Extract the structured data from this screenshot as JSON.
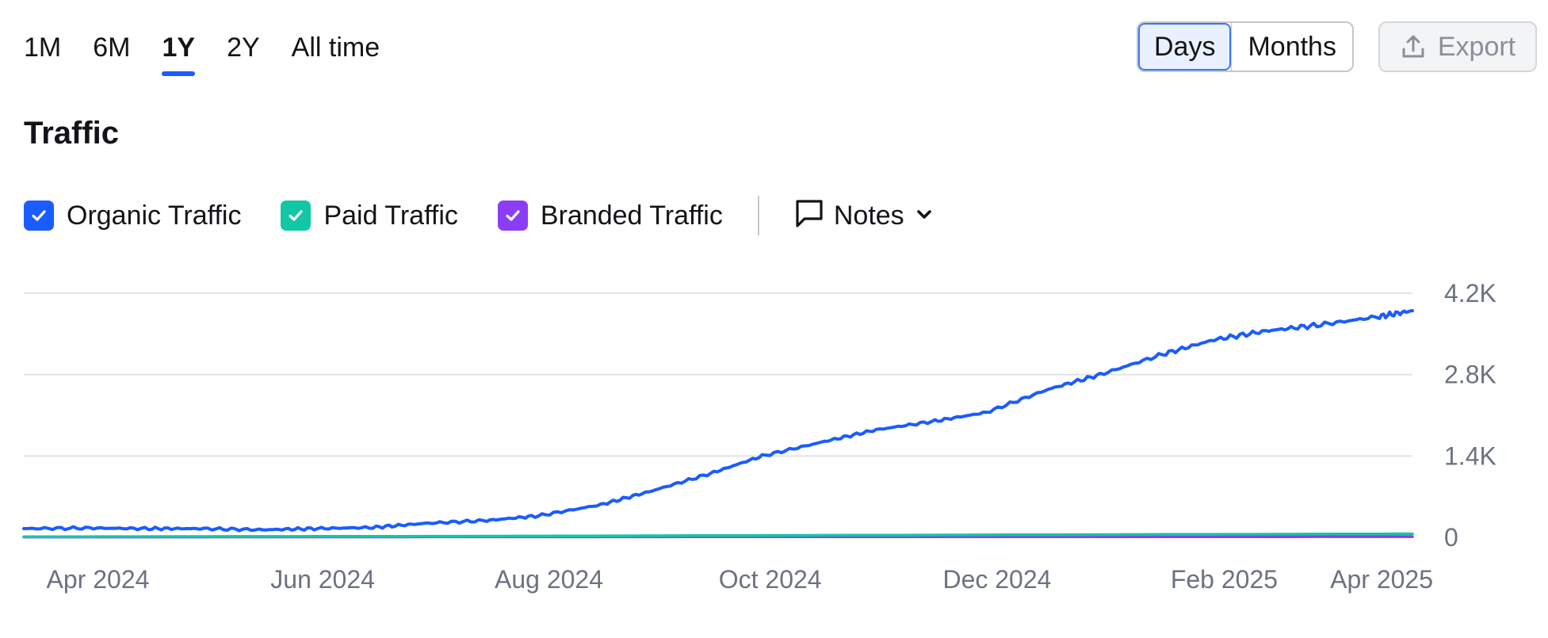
{
  "range_tabs": [
    {
      "label": "1M",
      "active": false
    },
    {
      "label": "6M",
      "active": false
    },
    {
      "label": "1Y",
      "active": true
    },
    {
      "label": "2Y",
      "active": false
    },
    {
      "label": "All time",
      "active": false
    }
  ],
  "granularity": {
    "options": [
      "Days",
      "Months"
    ],
    "selected": "Days"
  },
  "export": {
    "label": "Export",
    "icon": "upload-icon"
  },
  "title": "Traffic",
  "legend": [
    {
      "label": "Organic Traffic",
      "color": "#1a5cff",
      "checked": true
    },
    {
      "label": "Paid Traffic",
      "color": "#12c7a5",
      "checked": true
    },
    {
      "label": "Branded Traffic",
      "color": "#8b3df5",
      "checked": true
    }
  ],
  "notes": {
    "label": "Notes",
    "icon": "speech-bubble-icon",
    "dropdown_icon": "chevron-down-icon"
  },
  "chart_data": {
    "type": "line",
    "x_domain": [
      "2024-03-28",
      "2025-04-10"
    ],
    "x_ticks": [
      {
        "date": "2024-04-01",
        "label": "Apr 2024"
      },
      {
        "date": "2024-06-01",
        "label": "Jun 2024"
      },
      {
        "date": "2024-08-01",
        "label": "Aug 2024"
      },
      {
        "date": "2024-10-01",
        "label": "Oct 2024"
      },
      {
        "date": "2024-12-01",
        "label": "Dec 2024"
      },
      {
        "date": "2025-02-01",
        "label": "Feb 2025"
      },
      {
        "date": "2025-04-01",
        "label": "Apr 2025"
      }
    ],
    "y_ticks": [
      {
        "value": 0,
        "label": "0"
      },
      {
        "value": 1400,
        "label": "1.4K"
      },
      {
        "value": 2800,
        "label": "2.8K"
      },
      {
        "value": 4200,
        "label": "4.2K"
      }
    ],
    "ylim": [
      0,
      4200
    ],
    "grid": true,
    "series": [
      {
        "name": "Organic Traffic",
        "color": "#1a5cff",
        "points": [
          [
            "2024-03-28",
            150
          ],
          [
            "2024-04-15",
            160
          ],
          [
            "2024-05-01",
            150
          ],
          [
            "2024-05-15",
            150
          ],
          [
            "2024-06-01",
            130
          ],
          [
            "2024-06-15",
            150
          ],
          [
            "2024-07-01",
            170
          ],
          [
            "2024-07-15",
            240
          ],
          [
            "2024-08-01",
            290
          ],
          [
            "2024-08-15",
            370
          ],
          [
            "2024-09-01",
            560
          ],
          [
            "2024-09-15",
            800
          ],
          [
            "2024-10-01",
            1100
          ],
          [
            "2024-10-15",
            1400
          ],
          [
            "2024-11-01",
            1650
          ],
          [
            "2024-11-15",
            1850
          ],
          [
            "2024-12-01",
            2000
          ],
          [
            "2024-12-15",
            2150
          ],
          [
            "2025-01-01",
            2550
          ],
          [
            "2025-01-15",
            2800
          ],
          [
            "2025-02-01",
            3150
          ],
          [
            "2025-02-15",
            3400
          ],
          [
            "2025-03-01",
            3550
          ],
          [
            "2025-03-15",
            3650
          ],
          [
            "2025-04-01",
            3800
          ],
          [
            "2025-04-10",
            3900
          ]
        ]
      },
      {
        "name": "Paid Traffic",
        "color": "#12c7a5",
        "points": [
          [
            "2024-03-28",
            10
          ],
          [
            "2024-08-01",
            20
          ],
          [
            "2024-10-01",
            30
          ],
          [
            "2024-12-01",
            40
          ],
          [
            "2025-02-01",
            50
          ],
          [
            "2025-04-10",
            60
          ]
        ]
      },
      {
        "name": "Branded Traffic",
        "color": "#8b3df5",
        "points": [
          [
            "2024-03-28",
            5
          ],
          [
            "2024-08-01",
            8
          ],
          [
            "2024-12-01",
            10
          ],
          [
            "2025-04-10",
            12
          ]
        ]
      }
    ]
  }
}
